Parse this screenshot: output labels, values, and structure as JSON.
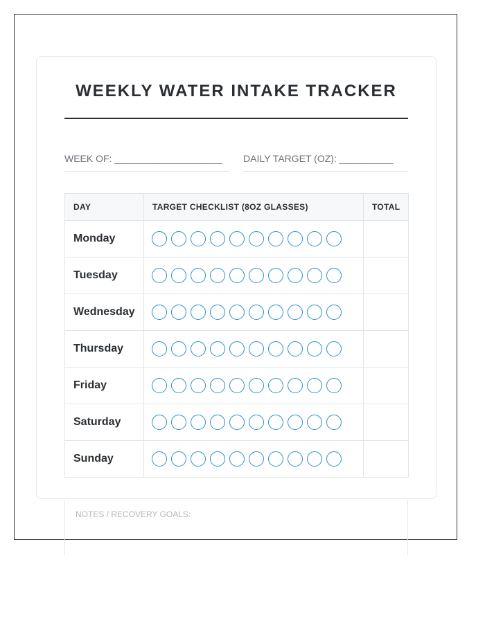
{
  "title": "WEEKLY WATER INTAKE TRACKER",
  "fields": {
    "week_of": "WEEK OF: ____________________",
    "daily_target": "DAILY TARGET (OZ): __________"
  },
  "table": {
    "headers": [
      "DAY",
      "TARGET CHECKLIST (8OZ GLASSES)",
      "TOTAL"
    ],
    "glasses_per_day": 10,
    "rows": [
      {
        "day": "Monday",
        "total": ""
      },
      {
        "day": "Tuesday",
        "total": ""
      },
      {
        "day": "Wednesday",
        "total": ""
      },
      {
        "day": "Thursday",
        "total": ""
      },
      {
        "day": "Friday",
        "total": ""
      },
      {
        "day": "Saturday",
        "total": ""
      },
      {
        "day": "Sunday",
        "total": ""
      }
    ]
  },
  "notes": {
    "label": "NOTES / RECOVERY GOALS:"
  },
  "colors": {
    "accent": "#2b8fd1",
    "text": "#2b2f33"
  }
}
